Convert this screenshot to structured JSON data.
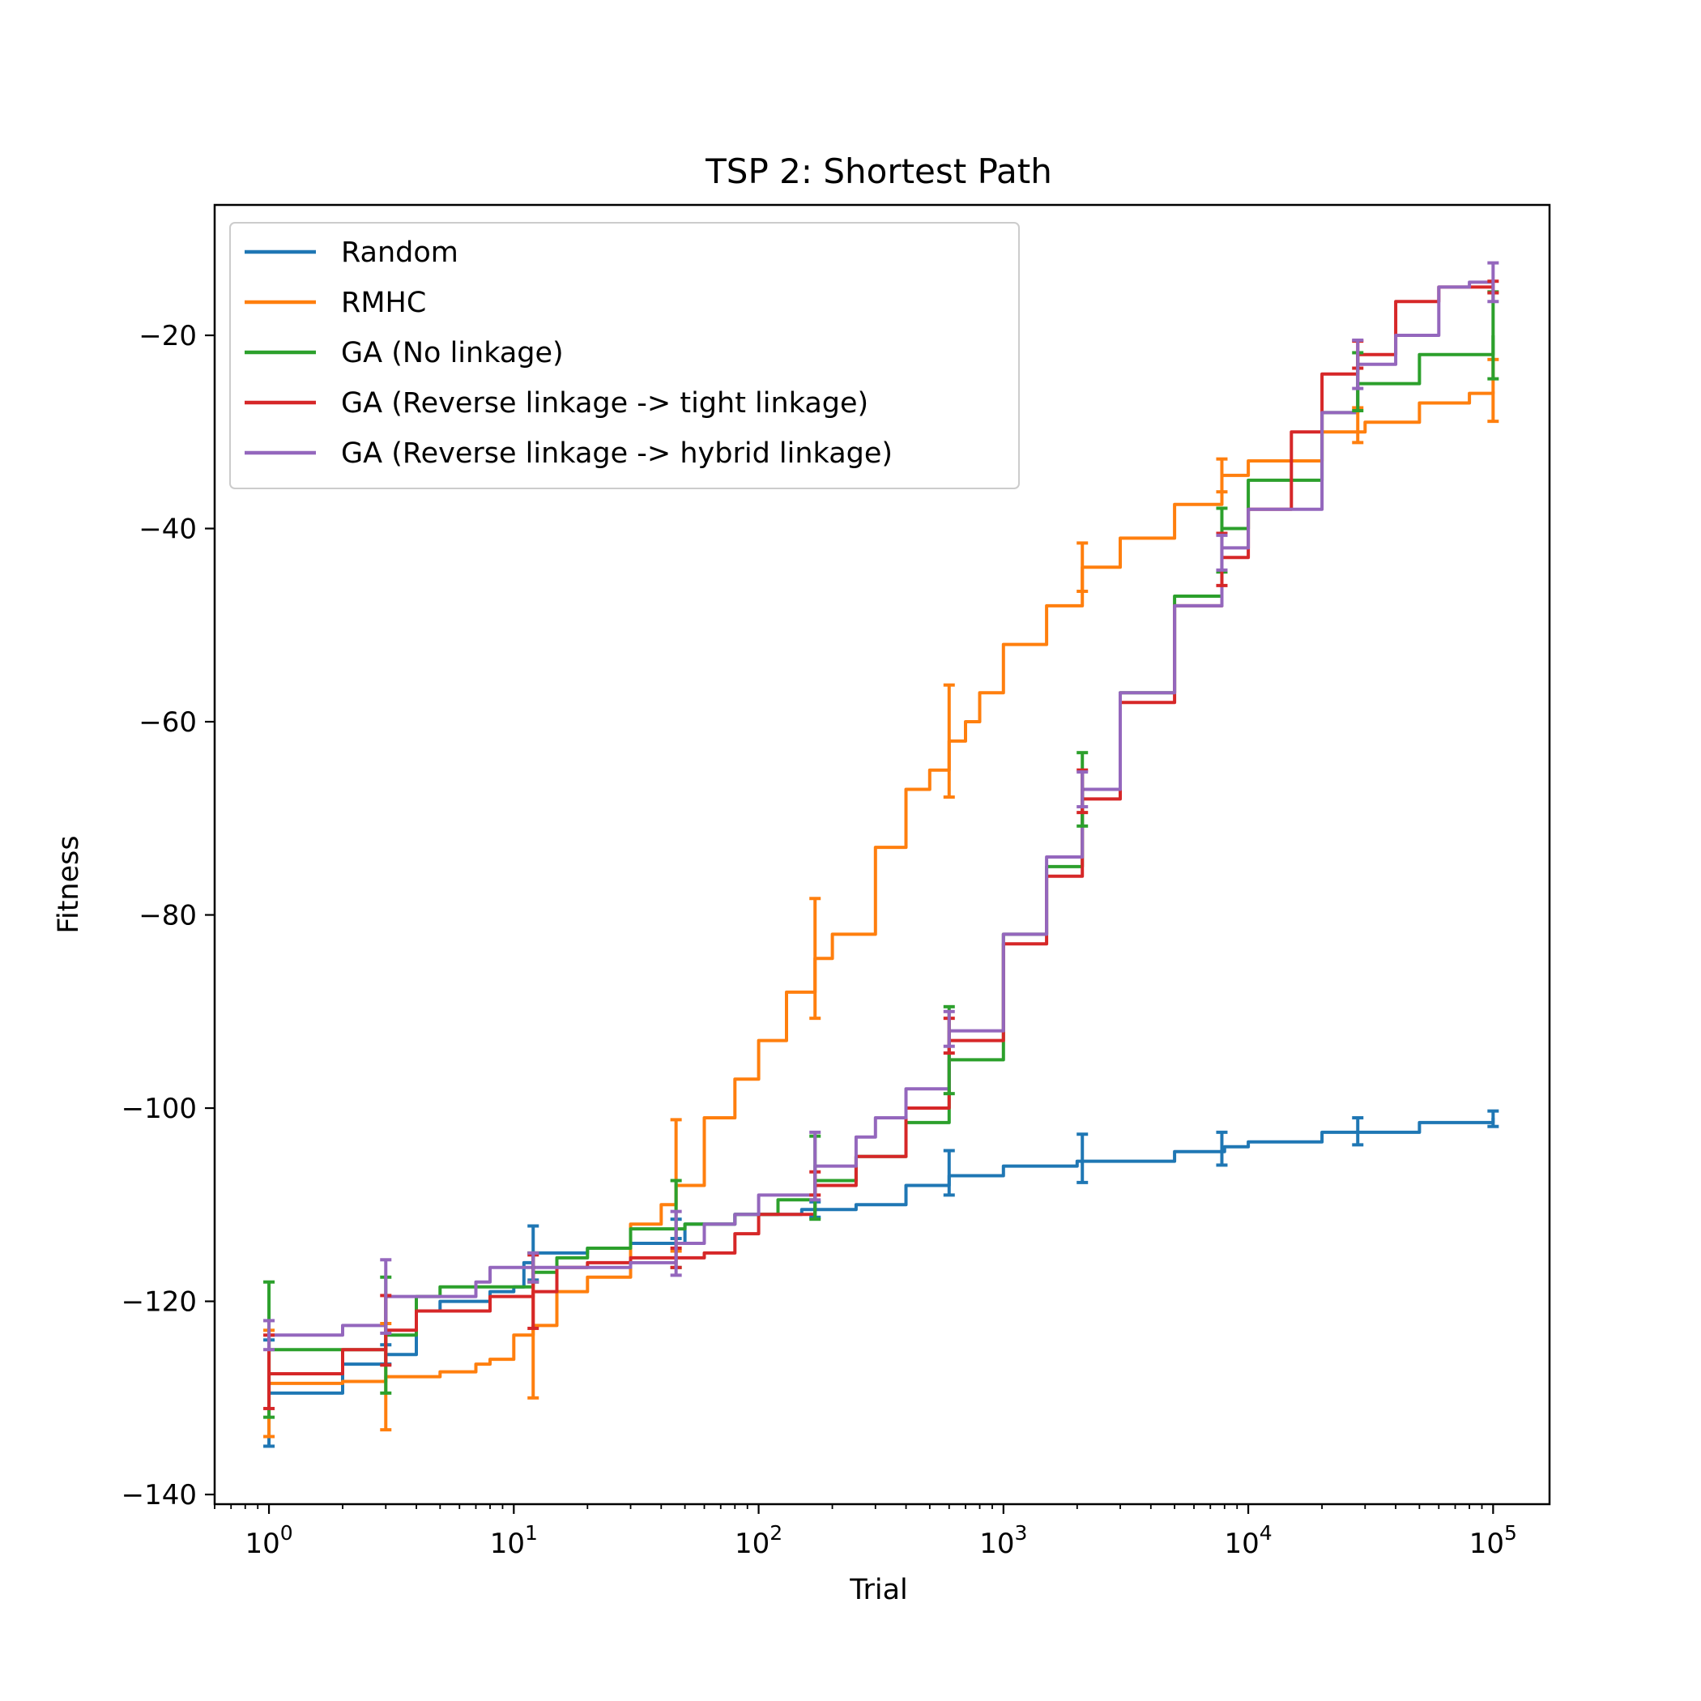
{
  "chart_data": {
    "type": "line",
    "title": "TSP 2: Shortest Path",
    "xlabel": "Trial",
    "ylabel": "Fitness",
    "xscale": "log",
    "xlim": [
      0.6,
      170000
    ],
    "ylim": [
      -141,
      -6.5
    ],
    "legend_position": "top-left",
    "x_tick_labels": [
      {
        "base": "10",
        "exp": "0",
        "value": 1
      },
      {
        "base": "10",
        "exp": "1",
        "value": 10
      },
      {
        "base": "10",
        "exp": "2",
        "value": 100
      },
      {
        "base": "10",
        "exp": "3",
        "value": 1000
      },
      {
        "base": "10",
        "exp": "4",
        "value": 10000
      },
      {
        "base": "10",
        "exp": "5",
        "value": 100000
      }
    ],
    "y_ticks": [
      -20,
      -40,
      -60,
      -80,
      -100,
      -120,
      -140
    ],
    "y_tick_labels": [
      "−20",
      "−40",
      "−60",
      "−80",
      "−100",
      "−120",
      "−140"
    ],
    "series": [
      {
        "name": "Random",
        "color": "#1f77b4",
        "points": [
          [
            1,
            -129.5
          ],
          [
            2,
            -126.5
          ],
          [
            3,
            -125.5
          ],
          [
            4,
            -121
          ],
          [
            5,
            -120
          ],
          [
            8,
            -119
          ],
          [
            10,
            -118.5
          ],
          [
            11,
            -116
          ],
          [
            12,
            -115
          ],
          [
            20,
            -114.5
          ],
          [
            30,
            -114
          ],
          [
            50,
            -112
          ],
          [
            80,
            -111
          ],
          [
            150,
            -110.5
          ],
          [
            250,
            -110
          ],
          [
            400,
            -108
          ],
          [
            600,
            -107
          ],
          [
            1000,
            -106
          ],
          [
            2000,
            -105.5
          ],
          [
            5000,
            -104.5
          ],
          [
            8000,
            -104
          ],
          [
            10000,
            -103.5
          ],
          [
            20000,
            -102.5
          ],
          [
            50000,
            -101.5
          ],
          [
            100000,
            -101
          ]
        ],
        "errors": [
          [
            1,
            -129.5,
            5.5
          ],
          [
            3,
            -125.5,
            1
          ],
          [
            12,
            -115,
            2.8
          ],
          [
            46,
            -112.5,
            1
          ],
          [
            170,
            -110.5,
            0.8
          ],
          [
            600,
            -106.7,
            2.3
          ],
          [
            2100,
            -105.2,
            2.5
          ],
          [
            7800,
            -104.2,
            1.7
          ],
          [
            28000,
            -102.4,
            1.4
          ],
          [
            100000,
            -101.1,
            0.8
          ]
        ]
      },
      {
        "name": "RMHC",
        "color": "#ff7f0e",
        "points": [
          [
            1,
            -128.5
          ],
          [
            2,
            -128.3
          ],
          [
            3,
            -127.8
          ],
          [
            5,
            -127.3
          ],
          [
            7,
            -126.5
          ],
          [
            8,
            -126
          ],
          [
            10,
            -123.5
          ],
          [
            12,
            -122.5
          ],
          [
            15,
            -119
          ],
          [
            20,
            -117.5
          ],
          [
            30,
            -112
          ],
          [
            40,
            -110
          ],
          [
            46,
            -108
          ],
          [
            60,
            -101
          ],
          [
            80,
            -97
          ],
          [
            100,
            -93
          ],
          [
            130,
            -88
          ],
          [
            170,
            -84.5
          ],
          [
            200,
            -82
          ],
          [
            300,
            -73
          ],
          [
            400,
            -67
          ],
          [
            500,
            -65
          ],
          [
            600,
            -62
          ],
          [
            700,
            -60
          ],
          [
            800,
            -57
          ],
          [
            1000,
            -52
          ],
          [
            1500,
            -48
          ],
          [
            2100,
            -44
          ],
          [
            3000,
            -41
          ],
          [
            5000,
            -37.5
          ],
          [
            7800,
            -34.5
          ],
          [
            10000,
            -33
          ],
          [
            20000,
            -30
          ],
          [
            30000,
            -29
          ],
          [
            50000,
            -27
          ],
          [
            80000,
            -26
          ],
          [
            100000,
            -25.8
          ]
        ],
        "errors": [
          [
            1,
            -128.5,
            5.5
          ],
          [
            3,
            -127.8,
            5.5
          ],
          [
            12,
            -122.5,
            7.5
          ],
          [
            46,
            -108,
            6.8
          ],
          [
            170,
            -84.5,
            6.2
          ],
          [
            600,
            -62,
            5.8
          ],
          [
            2100,
            -44,
            2.5
          ],
          [
            7800,
            -34.5,
            1.7
          ],
          [
            28000,
            -29.3,
            1.8
          ],
          [
            100000,
            -25.7,
            3.2
          ]
        ]
      },
      {
        "name": "GA (No linkage)",
        "color": "#2ca02c",
        "points": [
          [
            1,
            -125
          ],
          [
            3,
            -123.5
          ],
          [
            4,
            -119.5
          ],
          [
            5,
            -118.5
          ],
          [
            10,
            -118.5
          ],
          [
            12,
            -117
          ],
          [
            15,
            -115.5
          ],
          [
            20,
            -114.5
          ],
          [
            30,
            -112.5
          ],
          [
            50,
            -112
          ],
          [
            80,
            -111
          ],
          [
            120,
            -109.5
          ],
          [
            170,
            -107.5
          ],
          [
            250,
            -105
          ],
          [
            400,
            -101.5
          ],
          [
            600,
            -95
          ],
          [
            1000,
            -82
          ],
          [
            1500,
            -75
          ],
          [
            2100,
            -67
          ],
          [
            3000,
            -57
          ],
          [
            5000,
            -47
          ],
          [
            7800,
            -40
          ],
          [
            10000,
            -35
          ],
          [
            20000,
            -28
          ],
          [
            28000,
            -25
          ],
          [
            50000,
            -22
          ],
          [
            100000,
            -20
          ]
        ],
        "errors": [
          [
            1,
            -125,
            7
          ],
          [
            3,
            -123.5,
            6
          ],
          [
            12,
            -116.5,
            1.5
          ],
          [
            46,
            -112,
            4.5
          ],
          [
            170,
            -107.2,
            4.3
          ],
          [
            600,
            -94,
            4.5
          ],
          [
            2100,
            -67,
            3.8
          ],
          [
            7800,
            -41.2,
            3.3
          ],
          [
            28000,
            -24.8,
            3
          ],
          [
            100000,
            -20,
            4.5
          ]
        ]
      },
      {
        "name": "GA (Reverse linkage -> tight linkage)",
        "color": "#d62728",
        "points": [
          [
            1,
            -127.5
          ],
          [
            2,
            -125
          ],
          [
            3,
            -123
          ],
          [
            4,
            -121
          ],
          [
            6,
            -121
          ],
          [
            8,
            -119.5
          ],
          [
            10,
            -119.5
          ],
          [
            12,
            -119
          ],
          [
            15,
            -116.5
          ],
          [
            20,
            -116
          ],
          [
            30,
            -115.5
          ],
          [
            46,
            -115.5
          ],
          [
            60,
            -115
          ],
          [
            80,
            -113
          ],
          [
            100,
            -111
          ],
          [
            170,
            -108
          ],
          [
            250,
            -105
          ],
          [
            400,
            -100
          ],
          [
            600,
            -93
          ],
          [
            1000,
            -83
          ],
          [
            1500,
            -76
          ],
          [
            2100,
            -68
          ],
          [
            3000,
            -58
          ],
          [
            5000,
            -48
          ],
          [
            7800,
            -43
          ],
          [
            10000,
            -38
          ],
          [
            15000,
            -30
          ],
          [
            20000,
            -24
          ],
          [
            28000,
            -22
          ],
          [
            40000,
            -16.5
          ],
          [
            60000,
            -15
          ],
          [
            100000,
            -15
          ]
        ],
        "errors": [
          [
            1,
            -127.3,
            3.8
          ],
          [
            3,
            -123,
            3.6
          ],
          [
            12,
            -119,
            3.8
          ],
          [
            46,
            -115.5,
            1
          ],
          [
            170,
            -107.8,
            1.2
          ],
          [
            600,
            -92.5,
            1.8
          ],
          [
            2100,
            -67.2,
            2.2
          ],
          [
            7800,
            -43.2,
            2.7
          ],
          [
            28000,
            -22,
            1.4
          ],
          [
            100000,
            -15,
            0.6
          ]
        ]
      },
      {
        "name": "GA (Reverse linkage -> hybrid linkage)",
        "color": "#9467bd",
        "points": [
          [
            1,
            -123.5
          ],
          [
            2,
            -122.5
          ],
          [
            3,
            -119.5
          ],
          [
            5,
            -119.5
          ],
          [
            7,
            -118
          ],
          [
            8,
            -116.5
          ],
          [
            12,
            -116.5
          ],
          [
            20,
            -116.5
          ],
          [
            30,
            -116
          ],
          [
            46,
            -114
          ],
          [
            60,
            -112
          ],
          [
            80,
            -111
          ],
          [
            100,
            -109
          ],
          [
            170,
            -106
          ],
          [
            250,
            -103
          ],
          [
            300,
            -101
          ],
          [
            400,
            -98
          ],
          [
            600,
            -92
          ],
          [
            1000,
            -82
          ],
          [
            1500,
            -74
          ],
          [
            2100,
            -67
          ],
          [
            3000,
            -57
          ],
          [
            5000,
            -48
          ],
          [
            7800,
            -42
          ],
          [
            10000,
            -38
          ],
          [
            20000,
            -28
          ],
          [
            28000,
            -23
          ],
          [
            40000,
            -20
          ],
          [
            60000,
            -15
          ],
          [
            80000,
            -14.5
          ],
          [
            100000,
            -14.5
          ]
        ],
        "errors": [
          [
            1,
            -123.5,
            1.5
          ],
          [
            3,
            -119.5,
            3.8
          ],
          [
            12,
            -116.5,
            1.5
          ],
          [
            46,
            -114,
            3.3
          ],
          [
            170,
            -106,
            3.5
          ],
          [
            600,
            -91.8,
            1.8
          ],
          [
            2100,
            -67,
            1.8
          ],
          [
            7800,
            -42.5,
            1.8
          ],
          [
            28000,
            -23,
            2.5
          ],
          [
            100000,
            -14.5,
            2
          ]
        ]
      }
    ]
  }
}
